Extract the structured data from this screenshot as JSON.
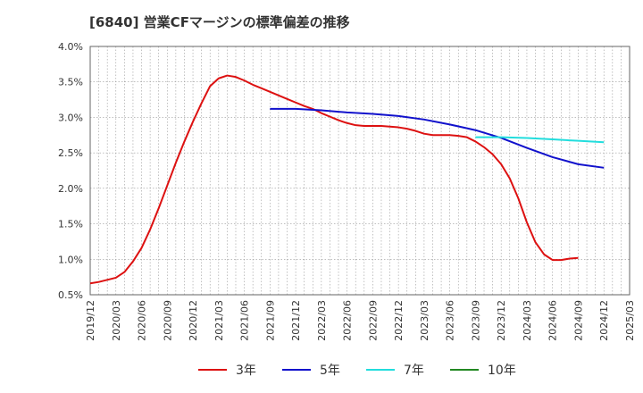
{
  "chart_data": {
    "type": "line",
    "title": "[6840]  営業CFマージンの標準偏差の推移",
    "xlabel": "",
    "ylabel": "",
    "ylim": [
      0.5,
      4.0
    ],
    "y_ticks": [
      0.5,
      1.0,
      1.5,
      2.0,
      2.5,
      3.0,
      3.5,
      4.0
    ],
    "y_tick_labels": [
      "0.5%",
      "1.0%",
      "1.5%",
      "2.0%",
      "2.5%",
      "3.0%",
      "3.5%",
      "4.0%"
    ],
    "x_tick_labels": [
      "2019/12",
      "2020/03",
      "2020/06",
      "2020/09",
      "2020/12",
      "2021/03",
      "2021/06",
      "2021/09",
      "2021/12",
      "2022/03",
      "2022/06",
      "2022/09",
      "2022/12",
      "2023/03",
      "2023/06",
      "2023/09",
      "2023/12",
      "2024/03",
      "2024/06",
      "2024/09",
      "2024/12",
      "2025/03"
    ],
    "grid": true,
    "legend_position": "bottom",
    "series": [
      {
        "name": "3年",
        "color": "#dd1111",
        "points": [
          [
            "2019/12",
            0.66
          ],
          [
            "2020/01",
            0.68
          ],
          [
            "2020/02",
            0.71
          ],
          [
            "2020/03",
            0.74
          ],
          [
            "2020/04",
            0.82
          ],
          [
            "2020/05",
            0.97
          ],
          [
            "2020/06",
            1.16
          ],
          [
            "2020/07",
            1.42
          ],
          [
            "2020/08",
            1.72
          ],
          [
            "2020/09",
            2.04
          ],
          [
            "2020/10",
            2.36
          ],
          [
            "2020/11",
            2.66
          ],
          [
            "2020/12",
            2.94
          ],
          [
            "2021/01",
            3.2
          ],
          [
            "2021/02",
            3.44
          ],
          [
            "2021/03",
            3.55
          ],
          [
            "2021/04",
            3.59
          ],
          [
            "2021/05",
            3.57
          ],
          [
            "2021/06",
            3.52
          ],
          [
            "2021/07",
            3.46
          ],
          [
            "2021/08",
            3.41
          ],
          [
            "2021/09",
            3.36
          ],
          [
            "2021/10",
            3.31
          ],
          [
            "2021/11",
            3.26
          ],
          [
            "2021/12",
            3.21
          ],
          [
            "2022/01",
            3.16
          ],
          [
            "2022/02",
            3.12
          ],
          [
            "2022/03",
            3.06
          ],
          [
            "2022/04",
            3.01
          ],
          [
            "2022/05",
            2.96
          ],
          [
            "2022/06",
            2.92
          ],
          [
            "2022/07",
            2.89
          ],
          [
            "2022/08",
            2.88
          ],
          [
            "2022/09",
            2.88
          ],
          [
            "2022/10",
            2.88
          ],
          [
            "2022/11",
            2.87
          ],
          [
            "2022/12",
            2.86
          ],
          [
            "2023/01",
            2.84
          ],
          [
            "2023/02",
            2.81
          ],
          [
            "2023/03",
            2.77
          ],
          [
            "2023/04",
            2.75
          ],
          [
            "2023/05",
            2.75
          ],
          [
            "2023/06",
            2.75
          ],
          [
            "2023/07",
            2.74
          ],
          [
            "2023/08",
            2.72
          ],
          [
            "2023/09",
            2.66
          ],
          [
            "2023/10",
            2.58
          ],
          [
            "2023/11",
            2.48
          ],
          [
            "2023/12",
            2.34
          ],
          [
            "2024/01",
            2.14
          ],
          [
            "2024/02",
            1.86
          ],
          [
            "2024/03",
            1.52
          ],
          [
            "2024/04",
            1.24
          ],
          [
            "2024/05",
            1.07
          ],
          [
            "2024/06",
            0.99
          ],
          [
            "2024/07",
            0.99
          ],
          [
            "2024/08",
            1.01
          ],
          [
            "2024/09",
            1.02
          ]
        ]
      },
      {
        "name": "5年",
        "color": "#1111cc",
        "points": [
          [
            "2021/09",
            3.12
          ],
          [
            "2021/12",
            3.12
          ],
          [
            "2022/03",
            3.1
          ],
          [
            "2022/06",
            3.07
          ],
          [
            "2022/09",
            3.05
          ],
          [
            "2022/12",
            3.02
          ],
          [
            "2023/03",
            2.97
          ],
          [
            "2023/06",
            2.9
          ],
          [
            "2023/09",
            2.82
          ],
          [
            "2023/12",
            2.71
          ],
          [
            "2024/03",
            2.57
          ],
          [
            "2024/06",
            2.44
          ],
          [
            "2024/09",
            2.34
          ],
          [
            "2024/12",
            2.29
          ]
        ]
      },
      {
        "name": "7年",
        "color": "#22dddd",
        "points": [
          [
            "2023/09",
            2.72
          ],
          [
            "2023/12",
            2.72
          ],
          [
            "2024/03",
            2.71
          ],
          [
            "2024/06",
            2.69
          ],
          [
            "2024/09",
            2.67
          ],
          [
            "2024/12",
            2.65
          ]
        ]
      },
      {
        "name": "10年",
        "color": "#228822",
        "points": []
      }
    ]
  }
}
